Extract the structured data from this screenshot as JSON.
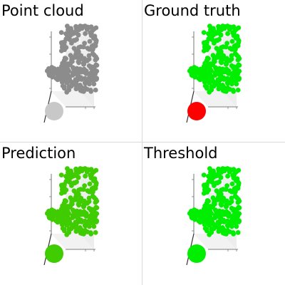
{
  "panels": [
    {
      "title": "Point cloud",
      "color": "#8c8c8c",
      "sphere_color": "#c8c8c8"
    },
    {
      "title": "Ground truth",
      "color": "#00ee00",
      "sphere_color": "#ff0000"
    },
    {
      "title": "Prediction",
      "color": "#3fcc00",
      "sphere_color": "#3fcc00"
    },
    {
      "title": "Threshold",
      "color": "#00ee00",
      "sphere_color": "#00ee00"
    }
  ]
}
